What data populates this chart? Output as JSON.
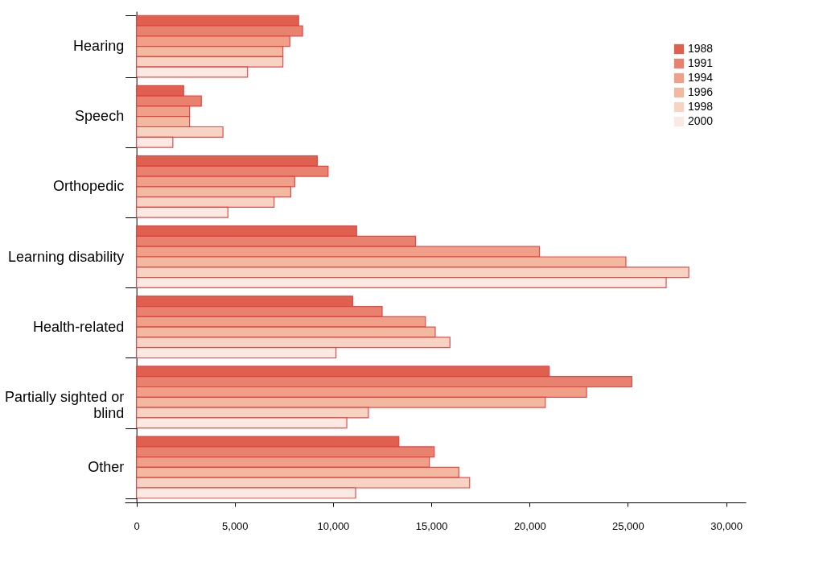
{
  "chart_data": {
    "type": "bar",
    "orientation": "horizontal",
    "categories": [
      "Hearing",
      "Speech",
      "Orthopedic",
      "Learning disability",
      "Health-related",
      "Partially sighted or blind",
      "Other"
    ],
    "series": [
      {
        "name": "1988",
        "color": "#e06050",
        "values": [
          8250,
          2400,
          9200,
          11200,
          11000,
          21000,
          13350
        ]
      },
      {
        "name": "1991",
        "color": "#e8826e",
        "values": [
          8450,
          3300,
          9750,
          14200,
          12500,
          25200,
          15150
        ]
      },
      {
        "name": "1994",
        "color": "#f0a088",
        "values": [
          7800,
          2700,
          8050,
          20500,
          14700,
          22900,
          14900
        ]
      },
      {
        "name": "1996",
        "color": "#f2b8a0",
        "values": [
          7450,
          2700,
          7850,
          24900,
          15200,
          20800,
          16400
        ]
      },
      {
        "name": "1998",
        "color": "#f7d3c4",
        "values": [
          7450,
          4400,
          7000,
          28100,
          15950,
          11800,
          16950
        ]
      },
      {
        "name": "2000",
        "color": "#fce9e1",
        "values": [
          5650,
          1850,
          4650,
          26950,
          10150,
          10700,
          11150
        ]
      }
    ],
    "xlim": [
      -600,
      31000
    ],
    "xticks": [
      {
        "value": 0,
        "label": "0"
      },
      {
        "value": 5000,
        "label": "5,000"
      },
      {
        "value": 10000,
        "label": "10,000"
      },
      {
        "value": 15000,
        "label": "15,000"
      },
      {
        "value": 20000,
        "label": "20,000"
      },
      {
        "value": 25000,
        "label": "25,000"
      },
      {
        "value": 30000,
        "label": "30,000"
      }
    ],
    "grid": false,
    "legend": "top right"
  }
}
